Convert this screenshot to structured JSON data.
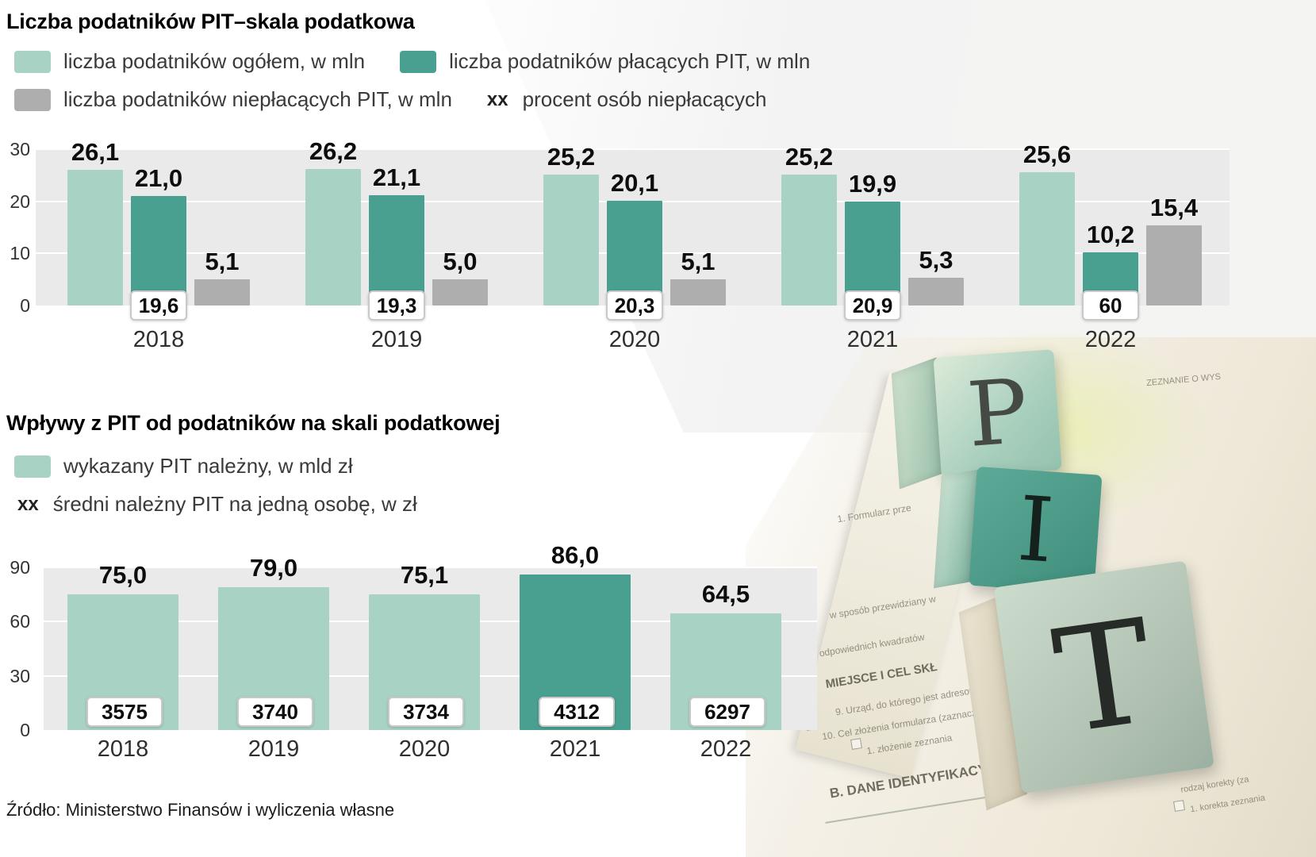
{
  "ui": {
    "xx_symbol": "xx",
    "source": "Źródło: Ministerstwo Finansów i wyliczenia własne"
  },
  "colors": {
    "light_teal": "#a8d2c3",
    "dark_teal": "#49a090",
    "gray": "#aeaeae",
    "plot_background": "#eaeaea"
  },
  "chart_data": [
    {
      "type": "bar",
      "title": "Liczba podatników PIT–skala podatkowa",
      "categories": [
        "2018",
        "2019",
        "2020",
        "2021",
        "2022"
      ],
      "series": [
        {
          "key": "total",
          "name": "liczba podatników ogółem, w mln",
          "color": "#a8d2c3",
          "values": [
            26.1,
            26.2,
            25.2,
            25.2,
            25.6
          ],
          "labels": [
            "26,1",
            "26,2",
            "25,2",
            "25,2",
            "25,6"
          ]
        },
        {
          "key": "paying",
          "name": "liczba podatników płacących PIT, w mln",
          "color": "#49a090",
          "values": [
            21.0,
            21.1,
            20.1,
            19.9,
            10.2
          ],
          "labels": [
            "21,0",
            "21,1",
            "20,1",
            "19,9",
            "10,2"
          ]
        },
        {
          "key": "nonpaying",
          "name": "liczba podatników niepłacących PIT, w mln",
          "color": "#aeaeae",
          "values": [
            5.1,
            5.0,
            5.1,
            5.3,
            15.4
          ],
          "labels": [
            "5,1",
            "5,0",
            "5,1",
            "5,3",
            "15,4"
          ]
        }
      ],
      "annotations": {
        "name": "procent osób niepłacących",
        "values": [
          "19,6",
          "19,3",
          "20,3",
          "20,9",
          "60"
        ]
      },
      "ylim": [
        0,
        30
      ],
      "yticks": [
        0,
        10,
        20,
        30
      ],
      "grid": true,
      "legend_position": "top"
    },
    {
      "type": "bar",
      "title": "Wpływy z PIT od podatników na skali podatkowej",
      "categories": [
        "2018",
        "2019",
        "2020",
        "2021",
        "2022"
      ],
      "series": [
        {
          "key": "pit_due",
          "name": "wykazany PIT należny, w mld zł",
          "values": [
            75.0,
            79.0,
            75.1,
            86.0,
            64.5
          ],
          "labels": [
            "75,0",
            "79,0",
            "75,1",
            "86,0",
            "64,5"
          ],
          "colors": [
            "#a8d2c3",
            "#a8d2c3",
            "#a8d2c3",
            "#49a090",
            "#a8d2c3"
          ]
        }
      ],
      "annotations": {
        "name": "średni należny PIT na jedną osobę, w zł",
        "values": [
          "3575",
          "3740",
          "3734",
          "4312",
          "6297"
        ]
      },
      "ylim": [
        0,
        90
      ],
      "yticks": [
        0,
        30,
        60,
        90
      ],
      "grid": true,
      "legend_position": "top"
    }
  ],
  "photo": {
    "letters": [
      "P",
      "I",
      "T"
    ],
    "fragments": [
      "ZEZNANIE O WYS",
      "1. Formularz prze",
      "w sposób przewidziany w",
      "odpowiednich kwadratów",
      "MIEJSCE I CEL SKŁ",
      "9. Urząd, do którego jest adresowane",
      "10. Cel złożenia formularza (zaznaczyć wł",
      "1. złożenie zeznania",
      "B. DANE IDENTYFIKACY",
      "rodzaj korekty (za",
      "1. korekta zeznania"
    ]
  }
}
